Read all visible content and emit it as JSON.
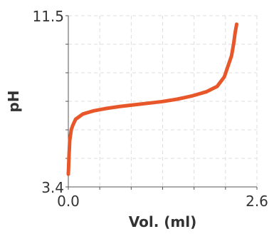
{
  "chart_data": {
    "type": "line",
    "title": "",
    "xlabel": "Vol. (ml)",
    "ylabel": "pH",
    "xlim": [
      0.0,
      2.6
    ],
    "ylim": [
      3.4,
      11.5
    ],
    "x_tick_labels": [
      "0.0",
      "2.6"
    ],
    "y_tick_labels": [
      "3.4",
      "11.5"
    ],
    "grid": true,
    "legend": "none",
    "series": [
      {
        "color": "#e8572a",
        "x": [
          0.0,
          0.01,
          0.02,
          0.04,
          0.06,
          0.1,
          0.2,
          0.35,
          0.5,
          0.7,
          0.9,
          1.1,
          1.3,
          1.5,
          1.7,
          1.9,
          2.05,
          2.15,
          2.2,
          2.25,
          2.28,
          2.3,
          2.32
        ],
        "y": [
          4.0,
          4.9,
          5.6,
          6.1,
          6.3,
          6.6,
          6.85,
          7.0,
          7.1,
          7.2,
          7.28,
          7.36,
          7.44,
          7.55,
          7.7,
          7.9,
          8.15,
          8.6,
          9.1,
          9.6,
          10.2,
          10.7,
          11.1
        ]
      }
    ]
  }
}
